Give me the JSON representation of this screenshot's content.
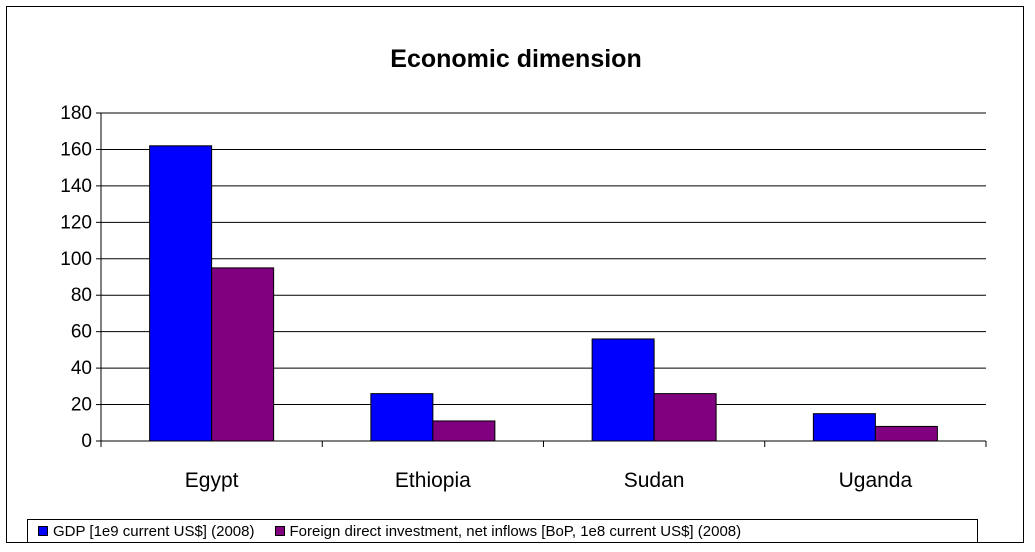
{
  "chart_data": {
    "type": "bar",
    "title": "Economic dimension",
    "categories": [
      "Egypt",
      "Ethiopia",
      "Sudan",
      "Uganda"
    ],
    "series": [
      {
        "name": "GDP [1e9 current US$] (2008)",
        "color": "#0000FF",
        "values": [
          162,
          26,
          56,
          15
        ]
      },
      {
        "name": "Foreign direct investment, net inflows [BoP, 1e8 current US$] (2008)",
        "color": "#800080",
        "values": [
          95,
          11,
          26,
          8
        ]
      }
    ],
    "ylim": [
      0,
      180
    ],
    "yticks": [
      0,
      20,
      40,
      60,
      80,
      100,
      120,
      140,
      160,
      180
    ],
    "grid": true,
    "legend_position": "bottom"
  }
}
